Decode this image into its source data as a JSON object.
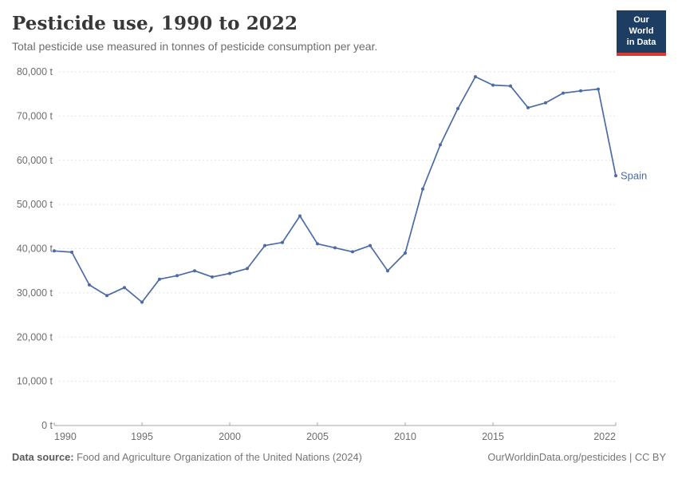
{
  "header": {
    "title": "Pesticide use, 1990 to 2022",
    "subtitle": "Total pesticide use measured in tonnes of pesticide consumption per year.",
    "logo": {
      "line1": "Our World",
      "line2": "in Data"
    }
  },
  "chart_data": {
    "type": "line",
    "title": "Pesticide use, 1990 to 2022",
    "unit": "t",
    "grid": "horizontal-dashed",
    "legend_position": "end-of-line-label",
    "xlim": [
      1990,
      2022
    ],
    "ylim": [
      0,
      80000
    ],
    "x_ticks": [
      1990,
      1995,
      2000,
      2005,
      2010,
      2015,
      2022
    ],
    "y_ticks": [
      {
        "value": 0,
        "label": "0 t"
      },
      {
        "value": 10000,
        "label": "10,000 t"
      },
      {
        "value": 20000,
        "label": "20,000 t"
      },
      {
        "value": 30000,
        "label": "30,000 t"
      },
      {
        "value": 40000,
        "label": "40,000 t"
      },
      {
        "value": 50000,
        "label": "50,000 t"
      },
      {
        "value": 60000,
        "label": "60,000 t"
      },
      {
        "value": 70000,
        "label": "70,000 t"
      },
      {
        "value": 80000,
        "label": "80,000 t"
      }
    ],
    "series": [
      {
        "name": "Spain",
        "color": "#4c6ba5",
        "x": [
          1990,
          1991,
          1992,
          1993,
          1994,
          1995,
          1996,
          1997,
          1998,
          1999,
          2000,
          2001,
          2002,
          2003,
          2004,
          2005,
          2006,
          2007,
          2008,
          2009,
          2010,
          2011,
          2012,
          2013,
          2014,
          2015,
          2016,
          2017,
          2018,
          2019,
          2020,
          2021,
          2022
        ],
        "values": [
          39500,
          39200,
          31800,
          29400,
          31200,
          27900,
          33100,
          33900,
          35000,
          33600,
          34400,
          35500,
          40700,
          41400,
          47400,
          41100,
          40200,
          39300,
          40700,
          35000,
          39000,
          53500,
          63500,
          71700,
          78900,
          77000,
          76800,
          71900,
          73000,
          75200,
          75700,
          76100,
          56500
        ]
      }
    ]
  },
  "footer": {
    "source_label": "Data source:",
    "source_text": " Food and Agriculture Organization of the United Nations (2024)",
    "link_text": "OurWorldinData.org/pesticides",
    "separator": " | ",
    "license": "CC BY"
  },
  "colors": {
    "line": "#4c6ba5",
    "logo_navy": "#1d3d63",
    "logo_red": "#d73a33",
    "gridline": "#e2e2e2",
    "axis": "#a5a5a5"
  }
}
